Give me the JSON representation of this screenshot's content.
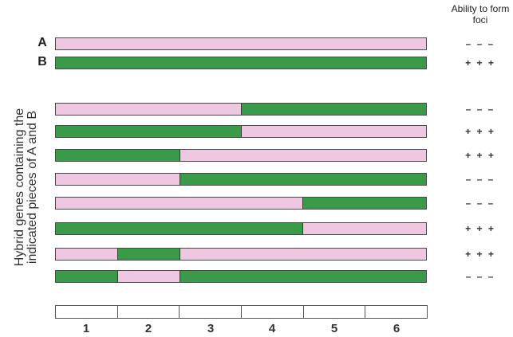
{
  "header": {
    "line1": "Ability to form",
    "line2": "foci"
  },
  "y_axis_label": {
    "line1": "Hybrid genes containing the",
    "line2": "indicated pieces of A and B"
  },
  "colors": {
    "A": "#eec8e0",
    "B": "#3a9a4a"
  },
  "parents": [
    {
      "label": "A",
      "segments": [
        "A",
        "A",
        "A",
        "A",
        "A",
        "A"
      ],
      "foci": "– – –"
    },
    {
      "label": "B",
      "segments": [
        "B",
        "B",
        "B",
        "B",
        "B",
        "B"
      ],
      "foci": "+ + +"
    }
  ],
  "hybrids": [
    {
      "segments": [
        "A",
        "A",
        "A",
        "B",
        "B",
        "B"
      ],
      "foci": "– – –"
    },
    {
      "segments": [
        "B",
        "B",
        "B",
        "A",
        "A",
        "A"
      ],
      "foci": "+ + +"
    },
    {
      "segments": [
        "B",
        "B",
        "A",
        "A",
        "A",
        "A"
      ],
      "foci": "+ + +"
    },
    {
      "segments": [
        "A",
        "A",
        "B",
        "B",
        "B",
        "B"
      ],
      "foci": "– – –"
    },
    {
      "segments": [
        "A",
        "A",
        "A",
        "A",
        "B",
        "B"
      ],
      "foci": "– – –"
    },
    {
      "segments": [
        "B",
        "B",
        "B",
        "B",
        "A",
        "A"
      ],
      "foci": "+ + +"
    },
    {
      "segments": [
        "A",
        "B",
        "A",
        "A",
        "A",
        "A"
      ],
      "foci": "+ + +"
    },
    {
      "segments": [
        "B",
        "A",
        "B",
        "B",
        "B",
        "B"
      ],
      "foci": "– – –"
    }
  ],
  "ruler": {
    "numbers": [
      "1",
      "2",
      "3",
      "4",
      "5",
      "6"
    ]
  }
}
